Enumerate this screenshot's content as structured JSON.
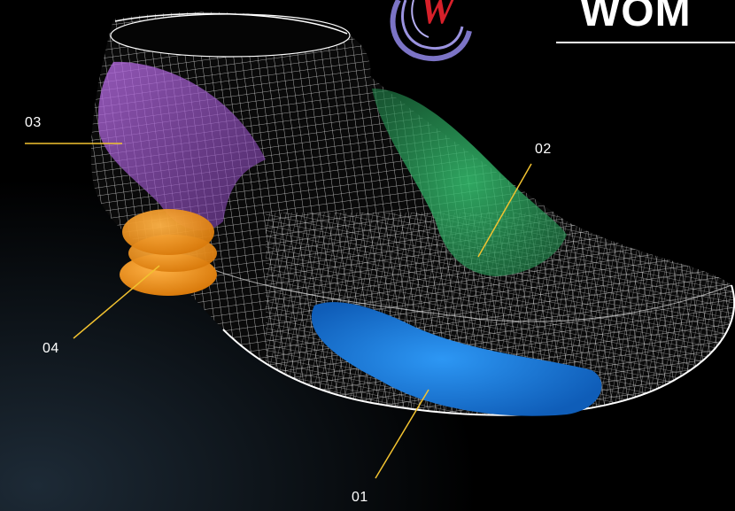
{
  "brand": {
    "title": "WOM",
    "logo_letter": "W",
    "colors": {
      "logo_swirl": "#7c74c6",
      "logo_letter": "#d8202a"
    }
  },
  "callouts": [
    {
      "id": "01",
      "label": "01",
      "zone_color": "#1a7fe0",
      "icon": "blue-pad"
    },
    {
      "id": "02",
      "label": "02",
      "zone_color": "#2fb864",
      "icon": "green-pad"
    },
    {
      "id": "03",
      "label": "03",
      "zone_color": "#a35ad0",
      "icon": "purple-pad"
    },
    {
      "id": "04",
      "label": "04",
      "zone_color": "#f0951e",
      "icon": "orange-disc"
    }
  ],
  "colors": {
    "background": "#000000",
    "wireframe": "#ffffff",
    "leader_line": "#f2c230"
  }
}
